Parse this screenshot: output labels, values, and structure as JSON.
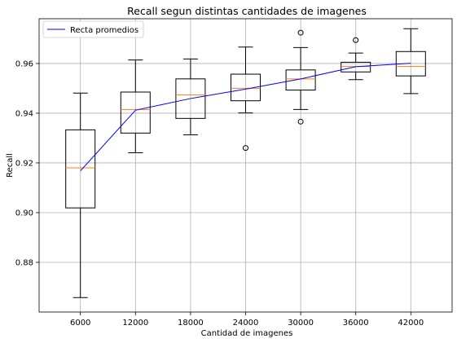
{
  "chart_data": {
    "type": "box",
    "title": "Recall segun distintas cantidades de imagenes",
    "xlabel": "Cantidad de imagenes",
    "ylabel": "Recall",
    "categories": [
      "6000",
      "12000",
      "18000",
      "24000",
      "30000",
      "36000",
      "42000"
    ],
    "ylim": [
      0.86,
      0.978
    ],
    "yticks": [
      "0.88",
      "0.90",
      "0.92",
      "0.94",
      "0.96"
    ],
    "ytick_values": [
      0.88,
      0.9,
      0.92,
      0.94,
      0.96
    ],
    "grid": true,
    "legend": {
      "placement": "top-left",
      "entries": [
        "Recta promedios"
      ]
    },
    "boxes": [
      {
        "whislo": 0.8658,
        "q1": 0.9019,
        "med": 0.918,
        "q3": 0.9333,
        "whishi": 0.9481,
        "fliers": []
      },
      {
        "whislo": 0.9241,
        "q1": 0.932,
        "med": 0.9415,
        "q3": 0.9485,
        "whishi": 0.9614,
        "fliers": []
      },
      {
        "whislo": 0.9313,
        "q1": 0.9379,
        "med": 0.9474,
        "q3": 0.9538,
        "whishi": 0.9618,
        "fliers": []
      },
      {
        "whislo": 0.9401,
        "q1": 0.945,
        "med": 0.95,
        "q3": 0.9557,
        "whishi": 0.9666,
        "fliers": [
          0.926
        ]
      },
      {
        "whislo": 0.9415,
        "q1": 0.9493,
        "med": 0.9538,
        "q3": 0.9574,
        "whishi": 0.9664,
        "fliers": [
          0.9724,
          0.9366
        ]
      },
      {
        "whislo": 0.9535,
        "q1": 0.9566,
        "med": 0.9588,
        "q3": 0.9605,
        "whishi": 0.9642,
        "fliers": [
          0.9694
        ]
      },
      {
        "whislo": 0.9479,
        "q1": 0.955,
        "med": 0.9588,
        "q3": 0.9648,
        "whishi": 0.974,
        "fliers": []
      }
    ],
    "mean_line": {
      "name": "Recta promedios",
      "values": [
        0.9168,
        0.9412,
        0.9459,
        0.9497,
        0.9538,
        0.9587,
        0.9601
      ]
    },
    "colors": {
      "box": "#000000",
      "median": "#ff7f0e",
      "mean_line": "#0000ff",
      "grid": "#b0b0b0"
    }
  }
}
